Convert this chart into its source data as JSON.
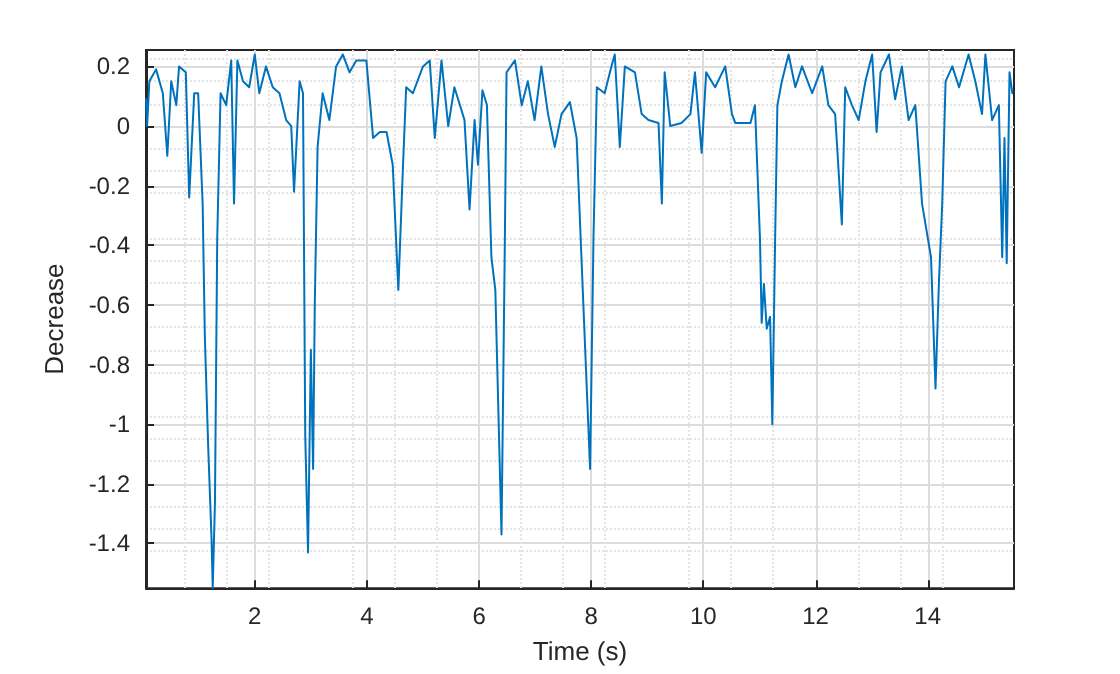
{
  "chart_data": {
    "type": "line",
    "xlabel": "Time (s)",
    "ylabel": "Decrease",
    "xlim": [
      0.06,
      15.54
    ],
    "ylim": [
      -1.55,
      0.255
    ],
    "xticks": [
      2,
      4,
      6,
      8,
      10,
      12,
      14
    ],
    "yticks": [
      -1.4,
      -1.2,
      -1,
      -0.8,
      -0.6,
      -0.4,
      -0.2,
      0,
      0.2
    ],
    "grid": true,
    "marker": "none",
    "line_style": "solid",
    "series": [
      {
        "color": "#0072bd",
        "x": [
          0.06,
          0.08,
          0.12,
          0.24,
          0.36,
          0.44,
          0.51,
          0.6,
          0.65,
          0.77,
          0.83,
          0.92,
          0.99,
          1.07,
          1.11,
          1.17,
          1.23,
          1.25,
          1.29,
          1.33,
          1.39,
          1.49,
          1.58,
          1.63,
          1.69,
          1.79,
          1.9,
          2.0,
          2.08,
          2.2,
          2.32,
          2.44,
          2.56,
          2.65,
          2.7,
          2.8,
          2.86,
          2.9,
          2.95,
          3.0,
          3.04,
          3.07,
          3.12,
          3.21,
          3.33,
          3.45,
          3.57,
          3.69,
          3.81,
          3.99,
          4.11,
          4.23,
          4.35,
          4.46,
          4.56,
          4.64,
          4.7,
          4.82,
          5.0,
          5.12,
          5.21,
          5.33,
          5.45,
          5.56,
          5.74,
          5.83,
          5.92,
          5.98,
          6.06,
          6.14,
          6.22,
          6.29,
          6.4,
          6.46,
          6.49,
          6.64,
          6.76,
          6.87,
          6.99,
          7.11,
          7.23,
          7.35,
          7.47,
          7.62,
          7.74,
          7.86,
          7.98,
          8.04,
          8.1,
          8.24,
          8.36,
          8.42,
          8.51,
          8.6,
          8.78,
          8.9,
          9.02,
          9.2,
          9.26,
          9.31,
          9.41,
          9.61,
          9.77,
          9.85,
          9.97,
          10.05,
          10.21,
          10.39,
          10.51,
          10.57,
          10.84,
          10.92,
          11.01,
          11.04,
          11.08,
          11.13,
          11.19,
          11.23,
          11.28,
          11.32,
          11.4,
          11.52,
          11.64,
          11.76,
          11.94,
          12.12,
          12.23,
          12.35,
          12.47,
          12.53,
          12.65,
          12.77,
          12.89,
          13.01,
          13.09,
          13.16,
          13.31,
          13.42,
          13.54,
          13.66,
          13.78,
          13.9,
          14.06,
          14.14,
          14.2,
          14.26,
          14.32,
          14.44,
          14.56,
          14.73,
          14.85,
          14.97,
          15.03,
          15.15,
          15.27,
          15.33,
          15.37,
          15.41,
          15.46,
          15.51
        ],
        "values": [
          0.09,
          0,
          0.15,
          0.19,
          0.11,
          -0.1,
          0.15,
          0.07,
          0.2,
          0.18,
          -0.24,
          0.11,
          0.11,
          -0.26,
          -0.71,
          -1.08,
          -1.39,
          -1.55,
          -1.26,
          -0.38,
          0.11,
          0.07,
          0.22,
          -0.26,
          0.22,
          0.15,
          0.13,
          0.24,
          0.11,
          0.2,
          0.13,
          0.11,
          0.02,
          0,
          -0.22,
          0.15,
          0.11,
          -1.04,
          -1.43,
          -0.75,
          -1.15,
          -0.6,
          -0.07,
          0.11,
          0.02,
          0.2,
          0.24,
          0.18,
          0.22,
          0.22,
          -0.04,
          -0.02,
          -0.02,
          -0.13,
          -0.55,
          -0.15,
          0.13,
          0.11,
          0.2,
          0.22,
          -0.04,
          0.22,
          0,
          0.13,
          0.02,
          -0.28,
          0.02,
          -0.13,
          0.12,
          0.07,
          -0.44,
          -0.55,
          -1.37,
          -0.38,
          0.18,
          0.22,
          0.07,
          0.15,
          0.02,
          0.2,
          0.04,
          -0.07,
          0.04,
          0.08,
          -0.04,
          -0.6,
          -1.15,
          -0.38,
          0.13,
          0.11,
          0.2,
          0.24,
          -0.07,
          0.2,
          0.18,
          0.04,
          0.02,
          0.01,
          -0.26,
          0.18,
          0,
          0.01,
          0.04,
          0.18,
          -0.09,
          0.18,
          0.13,
          0.2,
          0.04,
          0.01,
          0.01,
          0.07,
          -0.38,
          -0.66,
          -0.53,
          -0.68,
          -0.64,
          -1.0,
          -0.38,
          0.07,
          0.15,
          0.24,
          0.13,
          0.2,
          0.11,
          0.2,
          0.07,
          0.04,
          -0.33,
          0.13,
          0.07,
          0.02,
          0.15,
          0.24,
          -0.02,
          0.18,
          0.24,
          0.09,
          0.2,
          0.02,
          0.07,
          -0.26,
          -0.44,
          -0.88,
          -0.53,
          -0.26,
          0.15,
          0.2,
          0.13,
          0.24,
          0.15,
          0.04,
          0.24,
          0.02,
          0.07,
          -0.44,
          -0.04,
          -0.46,
          0.18,
          0.11
        ]
      }
    ]
  }
}
